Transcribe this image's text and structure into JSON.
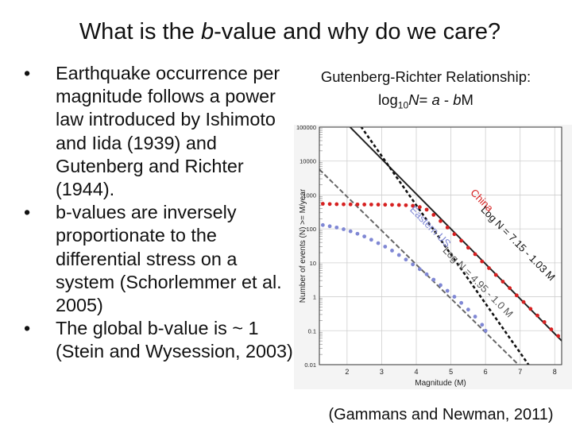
{
  "slide": {
    "title_pre": "What is the ",
    "title_b": "b",
    "title_post": "-value and why do we care?",
    "bullets": [
      "Earthquake occurrence per magnitude follows a power law introduced by Ishimoto and Iida (1939) and Gutenberg and Richter (1944).",
      "b-values are inversely proportionate to the differential stress on a system (Schorlemmer et al. 2005)",
      "The global b-value is ~ 1 (Stein and Wysession, 2003)"
    ],
    "equation_title": "Gutenberg-Richter Relationship:",
    "equation": {
      "log": "log",
      "base": "10",
      "N": "N",
      "eq": "= ",
      "a": "a",
      "minus": " - ",
      "bM": "b",
      "M": "M"
    },
    "citation": "(Gammans and Newman, 2011)"
  },
  "chart_data": {
    "type": "scatter",
    "xlabel": "Magnitude (M)",
    "ylabel": "Number of events (N) >= M/year",
    "xlim": [
      1.2,
      8.2
    ],
    "ylim": [
      0.01,
      100000
    ],
    "y_scale": "log",
    "x_ticks": [
      "2",
      "3",
      "4",
      "5",
      "6",
      "7",
      "8"
    ],
    "y_ticks": [
      "0.01",
      "0.1",
      "1",
      "10",
      "100",
      "1000",
      "10000",
      "100000"
    ],
    "grid": true,
    "series": [
      {
        "name": "China",
        "color": "#d62020",
        "points": [
          [
            1.3,
            550
          ],
          [
            1.5,
            540
          ],
          [
            1.7,
            535
          ],
          [
            1.9,
            530
          ],
          [
            2.1,
            528
          ],
          [
            2.3,
            526
          ],
          [
            2.5,
            524
          ],
          [
            2.7,
            522
          ],
          [
            2.9,
            520
          ],
          [
            3.1,
            516
          ],
          [
            3.3,
            512
          ],
          [
            3.5,
            506
          ],
          [
            3.7,
            498
          ],
          [
            3.9,
            480
          ],
          [
            4.1,
            440
          ],
          [
            4.3,
            370
          ],
          [
            4.5,
            260
          ],
          [
            4.7,
            170
          ],
          [
            4.9,
            110
          ],
          [
            5.1,
            70
          ],
          [
            5.3,
            45
          ],
          [
            5.5,
            28
          ],
          [
            5.7,
            18
          ],
          [
            5.9,
            11
          ],
          [
            6.1,
            7
          ],
          [
            6.3,
            4.4
          ],
          [
            6.5,
            2.8
          ],
          [
            6.7,
            1.8
          ],
          [
            6.9,
            1.1
          ],
          [
            7.1,
            0.7
          ],
          [
            7.3,
            0.44
          ],
          [
            7.5,
            0.28
          ],
          [
            7.7,
            0.18
          ],
          [
            7.9,
            0.11
          ],
          [
            8.1,
            0.07
          ]
        ]
      },
      {
        "name": "Eastern US",
        "color": "#7f87d4",
        "points": [
          [
            1.3,
            130
          ],
          [
            1.5,
            120
          ],
          [
            1.7,
            110
          ],
          [
            1.9,
            98
          ],
          [
            2.1,
            85
          ],
          [
            2.3,
            72
          ],
          [
            2.5,
            60
          ],
          [
            2.7,
            48
          ],
          [
            2.9,
            38
          ],
          [
            3.1,
            30
          ],
          [
            3.3,
            23
          ],
          [
            3.5,
            17
          ],
          [
            3.7,
            12.5
          ],
          [
            3.9,
            9
          ],
          [
            4.1,
            6.5
          ],
          [
            4.3,
            4.6
          ],
          [
            4.5,
            3.2
          ],
          [
            4.7,
            2.2
          ],
          [
            4.9,
            1.5
          ],
          [
            5.1,
            1.0
          ],
          [
            5.3,
            0.66
          ],
          [
            5.5,
            0.42
          ],
          [
            5.7,
            0.26
          ],
          [
            5.9,
            0.15
          ],
          [
            6.0,
            0.1
          ]
        ]
      }
    ],
    "fit_lines": [
      {
        "series": "China",
        "label": "Log N = 7.15 - 1.03 M",
        "a": 7.15,
        "b": 1.03,
        "color": "#222222"
      },
      {
        "series": "Eastern US",
        "label": "Log N = 4.95 - 1.0 M",
        "a": 4.95,
        "b": 1.0,
        "color": "#666666"
      },
      {
        "label": "",
        "a": 8.5,
        "b": 1.45,
        "color": "#111111",
        "style": "dotted"
      }
    ],
    "annotations": [
      {
        "text": "China",
        "color": "#d62020"
      },
      {
        "text": "Log N = 7.15 - 1.03 M",
        "color": "#111111"
      },
      {
        "text": "Eastern US",
        "color": "#7f87d4"
      },
      {
        "text": "Log N = 4.95 - 1.0 M",
        "color": "#555555"
      }
    ]
  }
}
